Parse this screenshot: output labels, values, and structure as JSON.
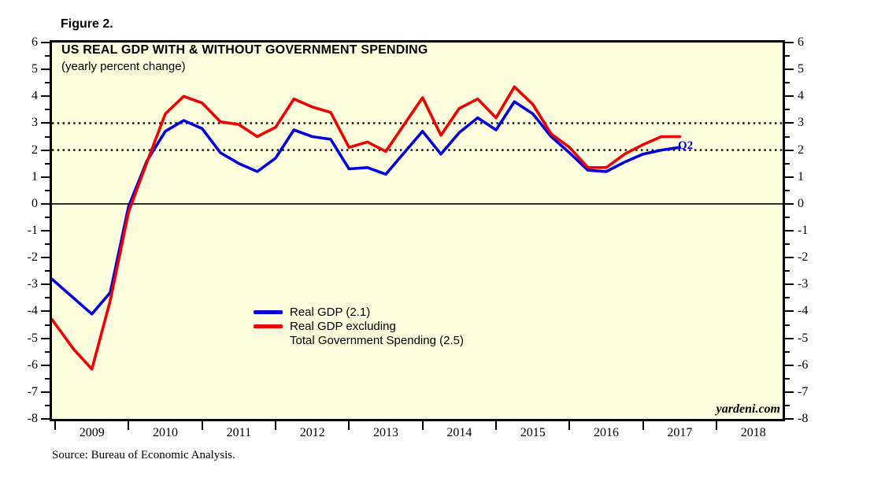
{
  "figure_label": "Figure 2.",
  "chart": {
    "title": "US REAL GDP WITH & WITHOUT GOVERNMENT SPENDING",
    "subtitle": "(yearly percent change)",
    "watermark": "yardeni.com",
    "end_point_label": "Q2",
    "source": "Source: Bureau of Economic Analysis.",
    "colors": {
      "gdp_line": "#0000DD",
      "gdp_ex_gov_line": "#EE0000",
      "plot_background": "#FFFFE0",
      "frame": "#000000"
    }
  },
  "legend": {
    "items": [
      {
        "color": "#0000DD",
        "label_lines": [
          "Real GDP (2.1)"
        ]
      },
      {
        "color": "#EE0000",
        "label_lines": [
          "Real GDP excluding",
          "Total Government Spending (2.5)"
        ]
      }
    ]
  },
  "chart_data": {
    "type": "line",
    "title": "US REAL GDP WITH & WITHOUT GOVERNMENT SPENDING",
    "subtitle": "(yearly percent change)",
    "ylabel": "yearly percent change",
    "ylim": [
      -8,
      6
    ],
    "y_tick_values": [
      6,
      5,
      4,
      3,
      2,
      1,
      0,
      -1,
      -2,
      -3,
      -4,
      -5,
      -6,
      -7,
      -8
    ],
    "y_tick_labels": [
      "6",
      "5",
      "4",
      "3",
      "2",
      "1",
      "0",
      "-1",
      "-2",
      "-3",
      "-4",
      "-5",
      "-6",
      "-7",
      "-8"
    ],
    "x_tick_labels": [
      "2009",
      "2010",
      "2011",
      "2012",
      "2013",
      "2014",
      "2015",
      "2016",
      "2017",
      "2018"
    ],
    "reference_lines": {
      "solid": [
        0
      ],
      "dotted": [
        2,
        3
      ]
    },
    "grid": "off",
    "legend_position": "inside-center-left",
    "x_unit": "quarterly",
    "quarters": [
      "2008Q4",
      "2009Q1",
      "2009Q2",
      "2009Q3",
      "2009Q4",
      "2010Q1",
      "2010Q2",
      "2010Q3",
      "2010Q4",
      "2011Q1",
      "2011Q2",
      "2011Q3",
      "2011Q4",
      "2012Q1",
      "2012Q2",
      "2012Q3",
      "2012Q4",
      "2013Q1",
      "2013Q2",
      "2013Q3",
      "2013Q4",
      "2014Q1",
      "2014Q2",
      "2014Q3",
      "2014Q4",
      "2015Q1",
      "2015Q2",
      "2015Q3",
      "2015Q4",
      "2016Q1",
      "2016Q2",
      "2016Q3",
      "2016Q4",
      "2017Q1",
      "2017Q2"
    ],
    "series": [
      {
        "name": "Real GDP (2.1)",
        "color": "#0000DD",
        "values": [
          -2.8,
          -3.5,
          -4.1,
          -3.3,
          -0.1,
          1.6,
          2.7,
          3.1,
          2.8,
          1.9,
          1.5,
          1.2,
          1.7,
          2.75,
          2.5,
          2.4,
          1.3,
          1.35,
          1.1,
          1.9,
          2.7,
          1.85,
          2.65,
          3.2,
          2.75,
          3.8,
          3.35,
          2.5,
          1.9,
          1.25,
          1.2,
          1.55,
          1.85,
          2.0,
          2.1
        ]
      },
      {
        "name": "Real GDP excluding Total Government Spending (2.5)",
        "color": "#EE0000",
        "values": [
          -4.3,
          -5.4,
          -6.15,
          -3.6,
          -0.3,
          1.55,
          3.35,
          4.0,
          3.75,
          3.05,
          2.95,
          2.5,
          2.85,
          3.9,
          3.6,
          3.4,
          2.1,
          2.3,
          1.95,
          2.95,
          3.95,
          2.55,
          3.55,
          3.9,
          3.2,
          4.35,
          3.7,
          2.6,
          2.1,
          1.35,
          1.35,
          1.85,
          2.2,
          2.5,
          2.5
        ]
      }
    ]
  }
}
